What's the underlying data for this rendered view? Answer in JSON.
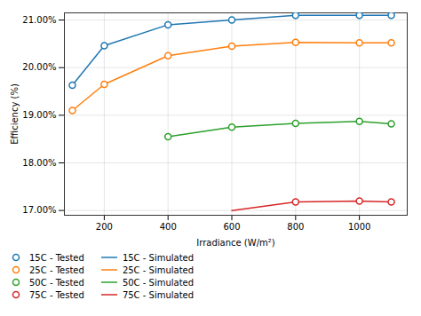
{
  "chart_data": {
    "type": "line",
    "title": "",
    "xlabel": "Irradiance (W/m²)",
    "ylabel": "Efficiency (%)",
    "xlim": [
      75,
      1150
    ],
    "ylim": [
      0.169,
      0.2115
    ],
    "xticks": [
      200,
      400,
      600,
      800,
      1000
    ],
    "yticks": [
      {
        "value": 0.17,
        "label": "17.00%"
      },
      {
        "value": 0.18,
        "label": "18.00%"
      },
      {
        "value": 0.19,
        "label": "19.00%"
      },
      {
        "value": 0.2,
        "label": "20.00%"
      },
      {
        "value": 0.21,
        "label": "21.00%"
      }
    ],
    "grid": true,
    "legend": "lower left",
    "series": [
      {
        "name": "15C - Tested",
        "type": "scatter",
        "marker": "circle",
        "color": "#1f77b4",
        "x": [
          100,
          200,
          400,
          600,
          800,
          1000,
          1100
        ],
        "values": [
          0.1963,
          0.2046,
          0.209,
          0.21,
          0.211,
          0.211,
          0.211
        ]
      },
      {
        "name": "15C - Simulated",
        "type": "line",
        "line_style": "solid",
        "color": "#1f77b4",
        "x": [
          100,
          200,
          400,
          600,
          800,
          1000,
          1100
        ],
        "values": [
          0.1963,
          0.2046,
          0.209,
          0.21,
          0.211,
          0.211,
          0.211
        ]
      },
      {
        "name": "25C - Tested",
        "type": "scatter",
        "marker": "circle",
        "color": "#ff7f0e",
        "x": [
          100,
          200,
          400,
          600,
          800,
          1000,
          1100
        ],
        "values": [
          0.191,
          0.1965,
          0.2025,
          0.2045,
          0.2053,
          0.2052,
          0.2052
        ]
      },
      {
        "name": "25C - Simulated",
        "type": "line",
        "line_style": "solid",
        "color": "#ff7f0e",
        "x": [
          100,
          200,
          400,
          600,
          800,
          1000,
          1100
        ],
        "values": [
          0.191,
          0.1965,
          0.2025,
          0.2045,
          0.2053,
          0.2052,
          0.2052
        ]
      },
      {
        "name": "50C - Tested",
        "type": "scatter",
        "marker": "circle",
        "color": "#2ca02c",
        "x": [
          400,
          600,
          800,
          1000,
          1100
        ],
        "values": [
          0.1855,
          0.1875,
          0.1883,
          0.1887,
          0.1882
        ]
      },
      {
        "name": "50C - Simulated",
        "type": "line",
        "line_style": "solid",
        "color": "#2ca02c",
        "x": [
          400,
          600,
          800,
          1000,
          1100
        ],
        "values": [
          0.1855,
          0.1875,
          0.1883,
          0.1887,
          0.1882
        ]
      },
      {
        "name": "75C - Tested",
        "type": "scatter",
        "marker": "circle",
        "color": "#d62728",
        "x": [
          800,
          1000,
          1100
        ],
        "values": [
          0.1718,
          0.172,
          0.1718
        ]
      },
      {
        "name": "75C - Simulated",
        "type": "line",
        "line_style": "solid",
        "color": "#d62728",
        "x": [
          600,
          800,
          1000,
          1100
        ],
        "values": [
          0.17,
          0.1718,
          0.172,
          0.1718
        ]
      }
    ]
  }
}
